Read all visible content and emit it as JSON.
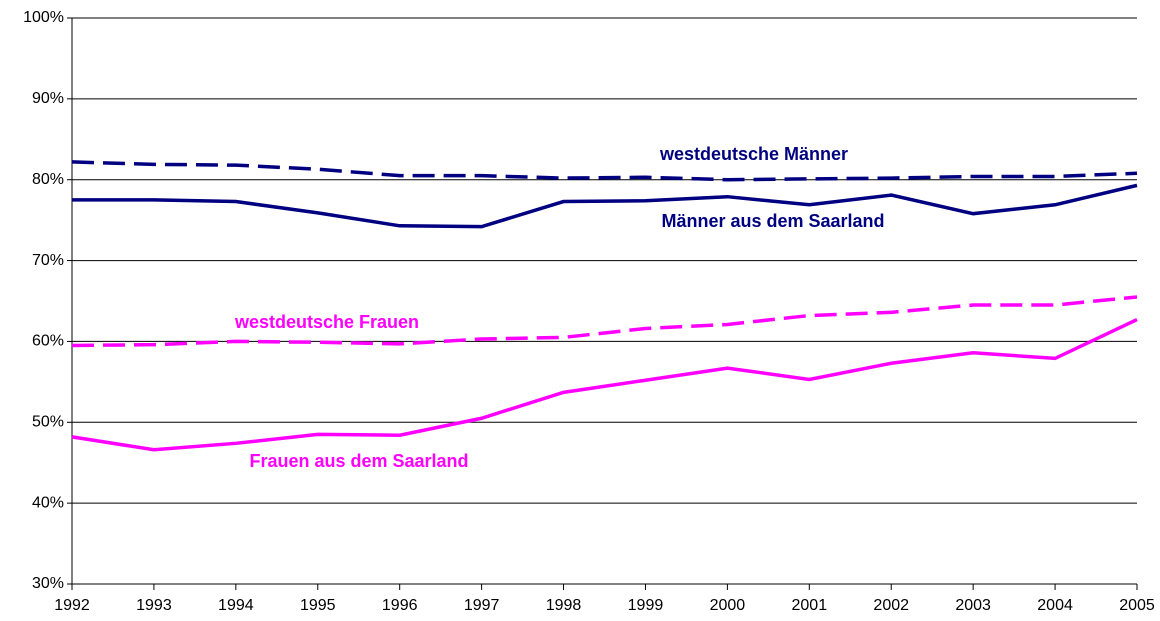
{
  "chart_data": {
    "type": "line",
    "x": [
      1992,
      1993,
      1994,
      1995,
      1996,
      1997,
      1998,
      1999,
      2000,
      2001,
      2002,
      2003,
      2004,
      2005
    ],
    "xlim": [
      1992,
      2005
    ],
    "xticks": [
      1992,
      1993,
      1994,
      1995,
      1996,
      1997,
      1998,
      1999,
      2000,
      2001,
      2002,
      2003,
      2004,
      2005
    ],
    "ylim": [
      30,
      100
    ],
    "yticks": [
      {
        "value": 30,
        "label": "30%"
      },
      {
        "value": 40,
        "label": "40%"
      },
      {
        "value": 50,
        "label": "50%"
      },
      {
        "value": 60,
        "label": "60%"
      },
      {
        "value": 70,
        "label": "70%"
      },
      {
        "value": 80,
        "label": "80%"
      },
      {
        "value": 90,
        "label": "90%"
      },
      {
        "value": 100,
        "label": "100%"
      }
    ],
    "grid": true,
    "series": [
      {
        "name": "westdeutsche Männer",
        "color": "#000080",
        "dashed": true,
        "values": [
          82.2,
          81.9,
          81.8,
          81.3,
          80.5,
          80.5,
          80.2,
          80.3,
          80.0,
          80.1,
          80.2,
          80.4,
          80.4,
          80.8
        ]
      },
      {
        "name": "Männer aus dem Saarland",
        "color": "#000080",
        "dashed": false,
        "values": [
          77.5,
          77.5,
          77.3,
          75.9,
          74.3,
          74.2,
          77.3,
          77.4,
          77.9,
          76.9,
          78.1,
          75.8,
          76.9,
          79.3
        ]
      },
      {
        "name": "westdeutsche Frauen",
        "color": "#ff00ff",
        "dashed": true,
        "values": [
          59.5,
          59.6,
          60.0,
          59.9,
          59.7,
          60.3,
          60.5,
          61.6,
          62.1,
          63.2,
          63.6,
          64.5,
          64.5,
          65.5
        ]
      },
      {
        "name": "Frauen aus dem Saarland",
        "color": "#ff00ff",
        "dashed": false,
        "values": [
          48.2,
          46.6,
          47.4,
          48.5,
          48.4,
          50.5,
          53.7,
          55.2,
          56.7,
          55.3,
          57.3,
          58.6,
          57.9,
          62.7
        ]
      }
    ]
  }
}
